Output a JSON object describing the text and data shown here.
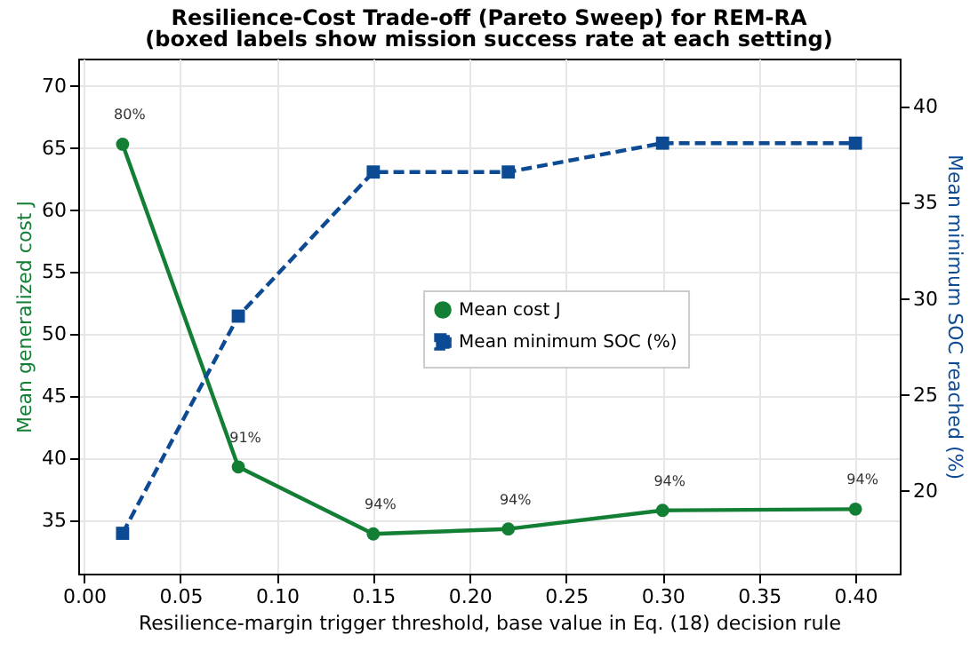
{
  "chart_data": {
    "type": "line",
    "title": "Resilience-Cost Trade-off (Pareto Sweep) for REM-RA",
    "subtitle": "(boxed labels show mission success rate at each setting)",
    "xlabel": "Resilience-margin trigger threshold, base value in Eq. (18) decision rule",
    "ylabel": "Mean generalized cost J",
    "y2label": "Mean minimum SOC reached (%)",
    "x": [
      0.02,
      0.08,
      0.15,
      0.22,
      0.3,
      0.4
    ],
    "series": [
      {
        "name": "Mean cost J",
        "color": "#137f35",
        "values": [
          65.3,
          39.3,
          33.9,
          34.3,
          35.8,
          35.9
        ],
        "marker": "circle",
        "line_style": "solid"
      },
      {
        "name": "Mean minimum SOC (%)",
        "color": "#0d4a94",
        "values": [
          17.8,
          29.1,
          36.6,
          36.6,
          38.1,
          38.1
        ],
        "axis": "y2",
        "marker": "square",
        "line_style": "dashed"
      }
    ],
    "annotations": [
      {
        "text": "80%",
        "x": 0.02,
        "y": 65.3
      },
      {
        "text": "91%",
        "x": 0.08,
        "y": 39.3
      },
      {
        "text": "94%",
        "x": 0.15,
        "y": 33.9
      },
      {
        "text": "94%",
        "x": 0.22,
        "y": 34.3
      },
      {
        "text": "94%",
        "x": 0.3,
        "y": 35.8
      },
      {
        "text": "94%",
        "x": 0.4,
        "y": 35.9
      }
    ],
    "xlim": [
      -0.003,
      0.423
    ],
    "xticks": [
      {
        "value": 0,
        "label": "0.00"
      },
      0.05,
      {
        "value": 0.1,
        "label": "0.10"
      },
      0.15,
      {
        "value": 0.2,
        "label": "0.20"
      },
      0.25,
      {
        "value": 0.3,
        "label": "0.30"
      },
      0.35,
      {
        "value": 0.4,
        "label": "0.40"
      }
    ],
    "ylim": [
      30.7,
      72.2
    ],
    "yticks": [
      35,
      40,
      45,
      50,
      55,
      60,
      65,
      70
    ],
    "y2lim": [
      15.7,
      42.5
    ],
    "y2ticks": [
      20,
      25,
      30,
      35,
      40
    ],
    "grid": true,
    "legend": "center"
  }
}
